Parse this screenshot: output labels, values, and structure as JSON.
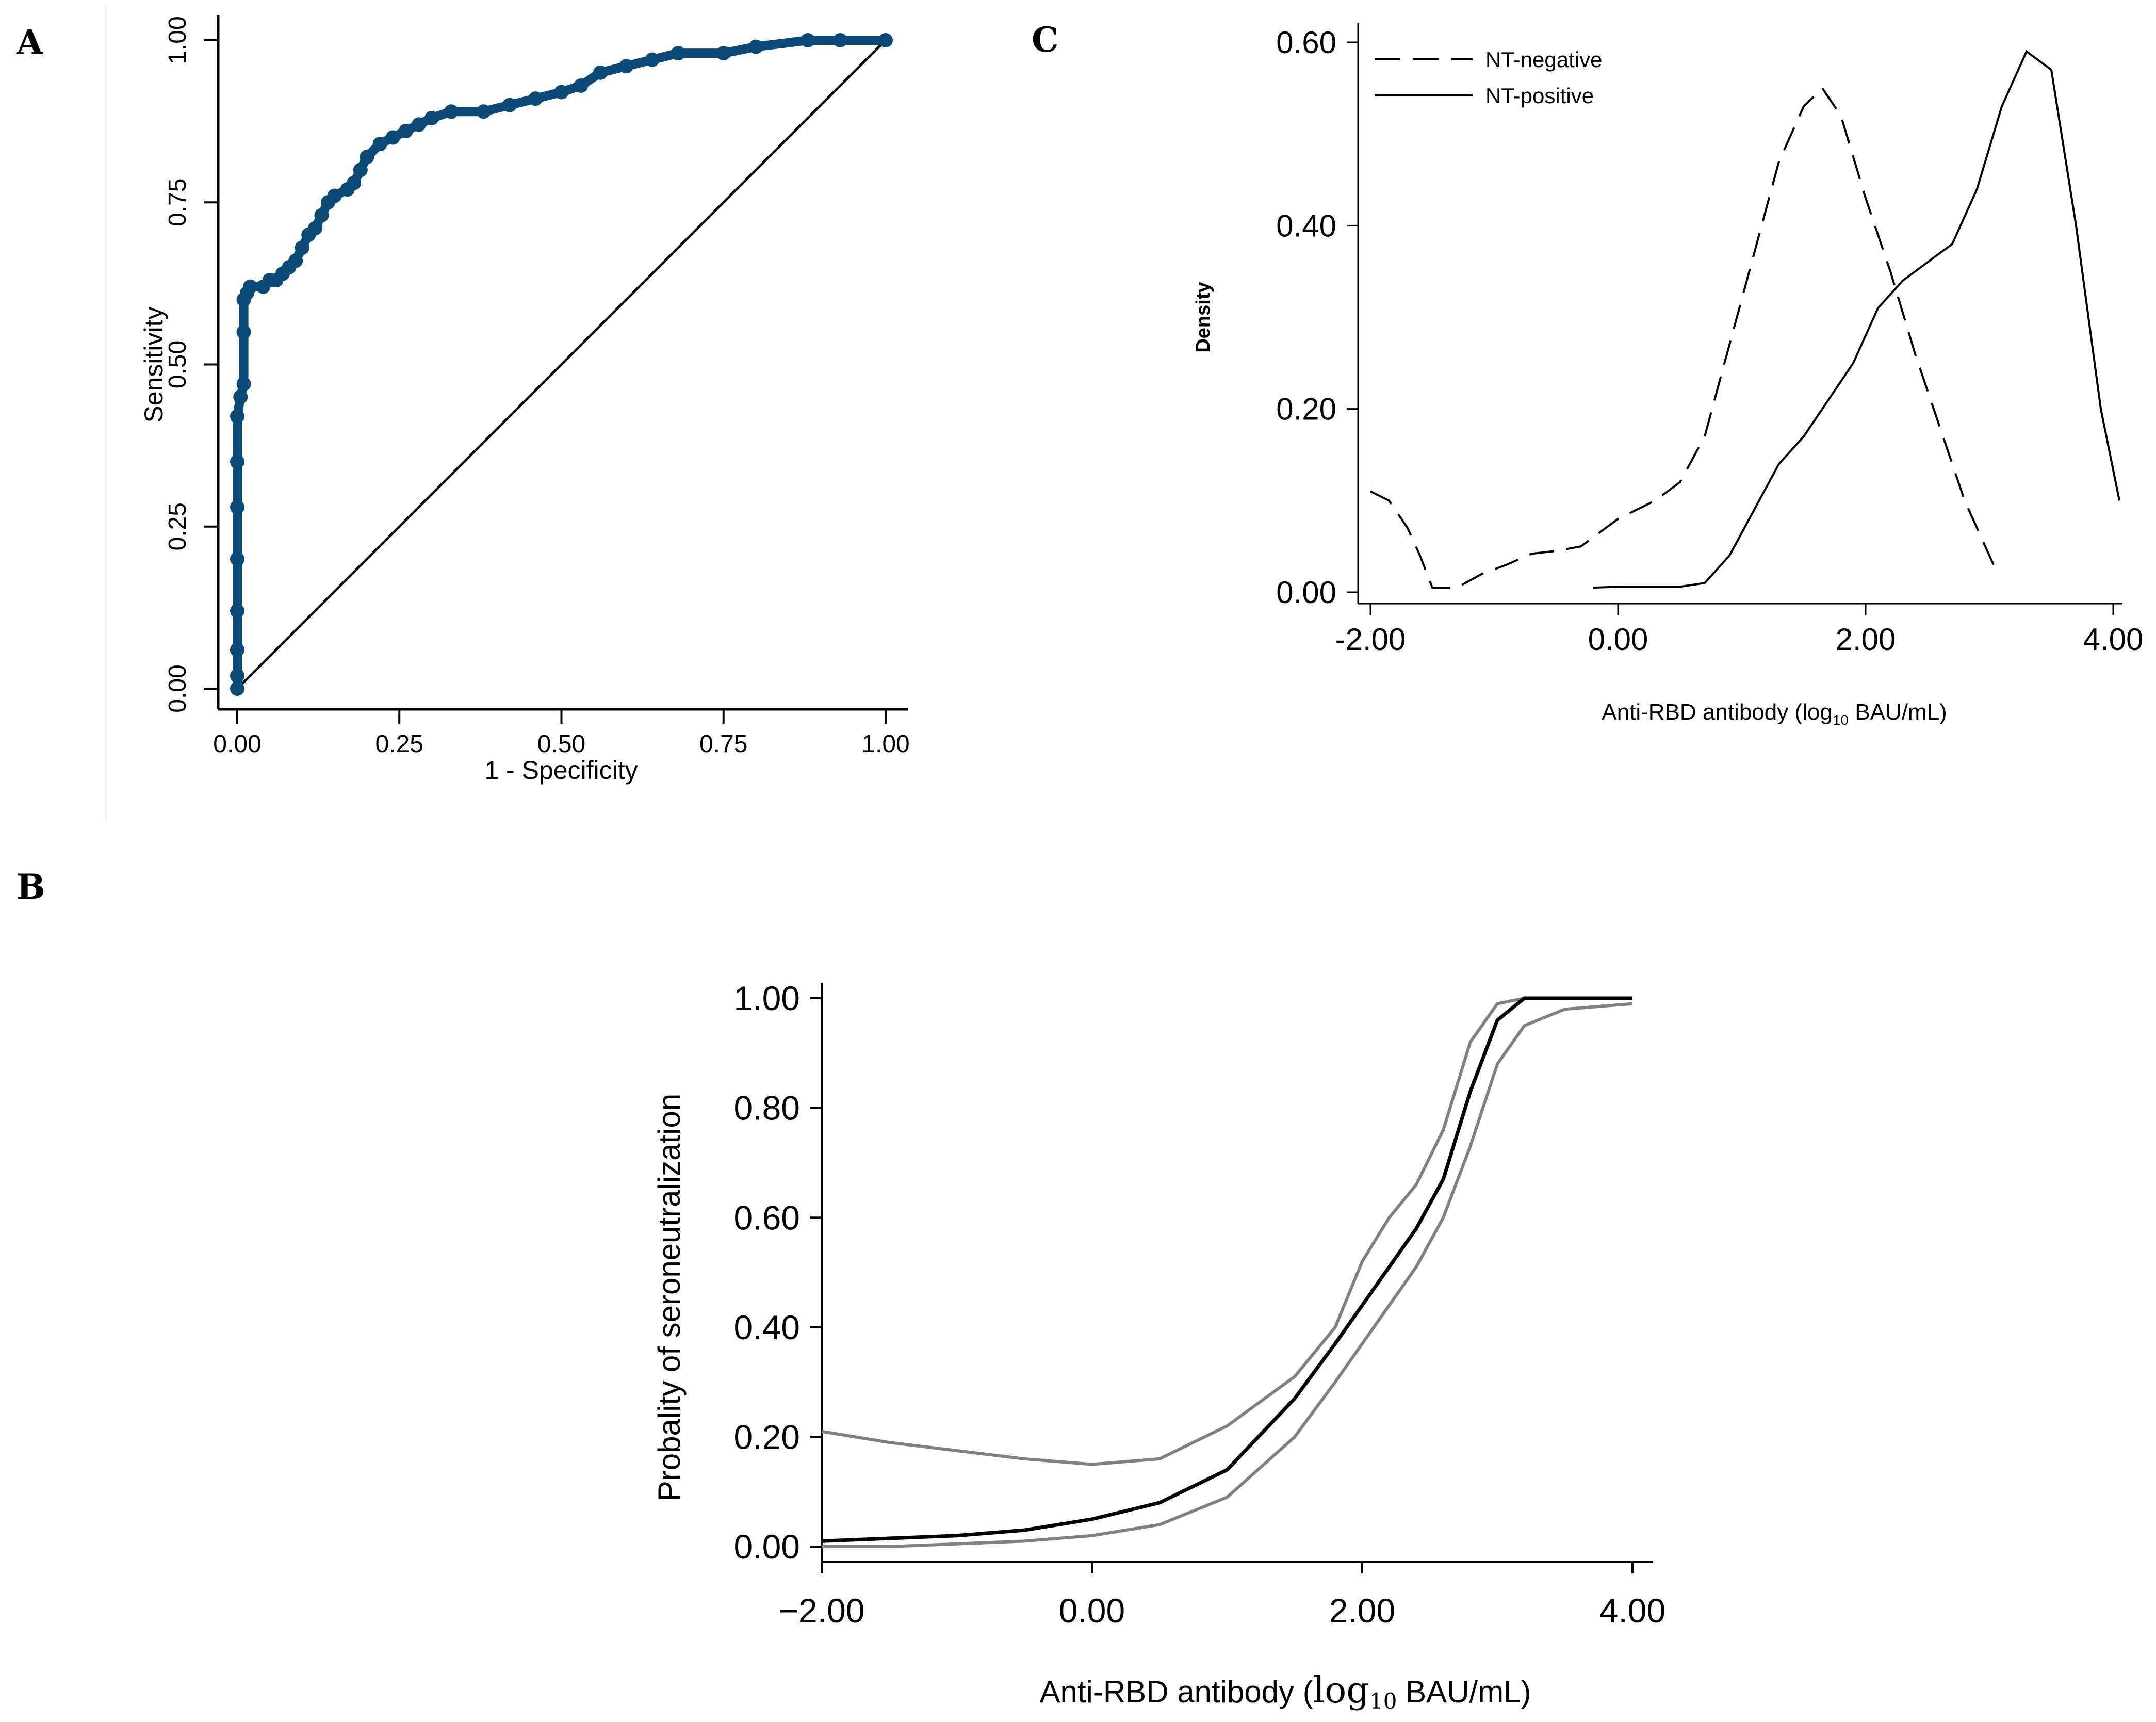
{
  "panels": [
    {
      "letter": "A"
    },
    {
      "letter": "B"
    },
    {
      "letter": "C"
    }
  ],
  "chart_data": [
    {
      "panel": "A",
      "type": "line",
      "xlabel": "1 - Specificity",
      "ylabel": "Sensitivity",
      "xlim": [
        0,
        1
      ],
      "ylim": [
        0,
        1
      ],
      "xticks": [
        "0.00",
        "0.25",
        "0.50",
        "0.75",
        "1.00"
      ],
      "yticks": [
        "0.00",
        "0.25",
        "0.50",
        "0.75",
        "1.00"
      ],
      "colors": {
        "roc": "#0b4a76",
        "reference": "#000000"
      },
      "series": [
        {
          "role": "roc_curve",
          "marker": "circle",
          "points": [
            [
              0,
              0
            ],
            [
              0,
              0.02
            ],
            [
              0,
              0.06
            ],
            [
              0,
              0.12
            ],
            [
              0,
              0.2
            ],
            [
              0,
              0.28
            ],
            [
              0,
              0.35
            ],
            [
              0,
              0.42
            ],
            [
              0.005,
              0.45
            ],
            [
              0.01,
              0.47
            ],
            [
              0.01,
              0.55
            ],
            [
              0.01,
              0.6
            ],
            [
              0.015,
              0.61
            ],
            [
              0.02,
              0.62
            ],
            [
              0.04,
              0.62
            ],
            [
              0.05,
              0.63
            ],
            [
              0.06,
              0.63
            ],
            [
              0.07,
              0.64
            ],
            [
              0.08,
              0.65
            ],
            [
              0.09,
              0.66
            ],
            [
              0.1,
              0.68
            ],
            [
              0.11,
              0.7
            ],
            [
              0.12,
              0.71
            ],
            [
              0.13,
              0.73
            ],
            [
              0.14,
              0.75
            ],
            [
              0.15,
              0.76
            ],
            [
              0.17,
              0.77
            ],
            [
              0.18,
              0.78
            ],
            [
              0.19,
              0.8
            ],
            [
              0.2,
              0.82
            ],
            [
              0.22,
              0.84
            ],
            [
              0.24,
              0.85
            ],
            [
              0.26,
              0.86
            ],
            [
              0.28,
              0.87
            ],
            [
              0.3,
              0.88
            ],
            [
              0.33,
              0.89
            ],
            [
              0.38,
              0.89
            ],
            [
              0.42,
              0.9
            ],
            [
              0.46,
              0.91
            ],
            [
              0.5,
              0.92
            ],
            [
              0.53,
              0.93
            ],
            [
              0.56,
              0.95
            ],
            [
              0.6,
              0.96
            ],
            [
              0.64,
              0.97
            ],
            [
              0.68,
              0.98
            ],
            [
              0.75,
              0.98
            ],
            [
              0.8,
              0.99
            ],
            [
              0.88,
              1.0
            ],
            [
              0.93,
              1.0
            ],
            [
              1.0,
              1.0
            ]
          ]
        },
        {
          "role": "reference_line",
          "points": [
            [
              0,
              0
            ],
            [
              1,
              1
            ]
          ]
        }
      ]
    },
    {
      "panel": "B",
      "type": "line",
      "xlabel_main": "Anti-RBD antibody (",
      "xlabel_log": "log",
      "xlabel_sub": "10",
      "xlabel_rest": " BAU/mL)",
      "ylabel": "Probality of seroneutralization",
      "xlim": [
        -2,
        4
      ],
      "ylim": [
        0,
        1
      ],
      "xticks": [
        "−2.00",
        "0.00",
        "2.00",
        "4.00"
      ],
      "yticks": [
        "0.00",
        "0.20",
        "0.40",
        "0.60",
        "0.80",
        "1.00"
      ],
      "colors": {
        "fit": "#000000",
        "ci": "#808080"
      },
      "series": [
        {
          "role": "fitted_probability",
          "x": [
            -2,
            -1.5,
            -1,
            -0.5,
            0,
            0.5,
            1,
            1.5,
            1.8,
            2,
            2.2,
            2.4,
            2.6,
            2.8,
            3,
            3.2,
            3.5,
            4
          ],
          "y": [
            0.01,
            0.015,
            0.02,
            0.03,
            0.05,
            0.08,
            0.14,
            0.27,
            0.37,
            0.44,
            0.51,
            0.58,
            0.67,
            0.83,
            0.96,
            1.0,
            1.0,
            1.0
          ]
        },
        {
          "role": "ci_upper",
          "x": [
            -2,
            -1.5,
            -1,
            -0.5,
            0,
            0.5,
            1,
            1.5,
            1.8,
            2,
            2.2,
            2.4,
            2.6,
            2.8,
            3,
            3.2,
            4
          ],
          "y": [
            0.21,
            0.19,
            0.175,
            0.16,
            0.15,
            0.16,
            0.22,
            0.31,
            0.4,
            0.52,
            0.6,
            0.66,
            0.76,
            0.92,
            0.99,
            1.0,
            1.0
          ]
        },
        {
          "role": "ci_lower",
          "x": [
            -2,
            -1.5,
            -1,
            -0.5,
            0,
            0.5,
            1,
            1.5,
            1.8,
            2,
            2.2,
            2.4,
            2.6,
            2.8,
            3,
            3.2,
            3.5,
            4
          ],
          "y": [
            0.0,
            0.0,
            0.005,
            0.01,
            0.02,
            0.04,
            0.09,
            0.2,
            0.3,
            0.37,
            0.44,
            0.51,
            0.6,
            0.73,
            0.88,
            0.95,
            0.98,
            0.99
          ]
        }
      ]
    },
    {
      "panel": "C",
      "type": "line",
      "xlabel_main": "Anti-RBD antibody (",
      "xlabel_log": "log",
      "xlabel_sub": "10",
      "xlabel_rest": " BAU/mL)",
      "ylabel": "Density",
      "xlim": [
        -2,
        4
      ],
      "ylim": [
        0,
        0.6
      ],
      "xticks": [
        "-2.00",
        "0.00",
        "2.00",
        "4.00"
      ],
      "yticks": [
        "0.00",
        "0.20",
        "0.40",
        "0.60"
      ],
      "legend_position": "top-left",
      "series": [
        {
          "name": "NT-negative",
          "dash": "dashed",
          "x": [
            -2,
            -1.85,
            -1.7,
            -1.6,
            -1.5,
            -1.3,
            -1.1,
            -0.9,
            -0.7,
            -0.5,
            -0.3,
            0,
            0.3,
            0.5,
            0.7,
            0.9,
            1.1,
            1.3,
            1.5,
            1.65,
            1.8,
            2.0,
            2.2,
            2.4,
            2.6,
            2.8,
            3.0,
            3.05
          ],
          "y": [
            0.11,
            0.1,
            0.07,
            0.04,
            0.005,
            0.005,
            0.02,
            0.03,
            0.042,
            0.045,
            0.05,
            0.08,
            0.1,
            0.12,
            0.17,
            0.27,
            0.37,
            0.47,
            0.53,
            0.55,
            0.52,
            0.43,
            0.35,
            0.26,
            0.18,
            0.1,
            0.04,
            0.025
          ]
        },
        {
          "name": "NT-positive",
          "dash": "solid",
          "x": [
            -0.2,
            0,
            0.2,
            0.5,
            0.7,
            0.9,
            1.1,
            1.3,
            1.5,
            1.7,
            1.9,
            2.1,
            2.3,
            2.5,
            2.7,
            2.9,
            3.1,
            3.3,
            3.5,
            3.7,
            3.9,
            4.05
          ],
          "y": [
            0.005,
            0.006,
            0.006,
            0.006,
            0.01,
            0.04,
            0.09,
            0.14,
            0.17,
            0.21,
            0.25,
            0.31,
            0.34,
            0.36,
            0.38,
            0.44,
            0.53,
            0.59,
            0.57,
            0.4,
            0.2,
            0.1
          ]
        }
      ]
    }
  ]
}
